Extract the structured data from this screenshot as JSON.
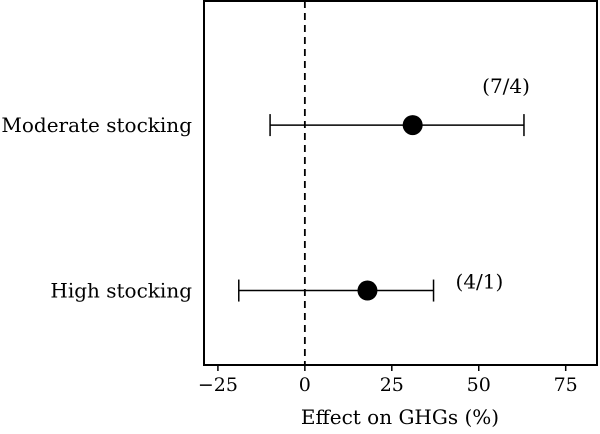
{
  "chart_data": {
    "type": "forest",
    "xlabel": "Effect on GHGs (%)",
    "xlim": [
      -29,
      84
    ],
    "x_ticks": [
      -25,
      0,
      25,
      50,
      75
    ],
    "x_tick_labels": [
      "−25",
      "0",
      "25",
      "50",
      "75"
    ],
    "reference_line": 0,
    "grid": false,
    "colors": {
      "marker": "#000000",
      "line": "#000000"
    },
    "rows": [
      {
        "label": "Moderate stocking",
        "estimate": 31,
        "ci_low": -10,
        "ci_high": 63,
        "annotation": "(7/4)"
      },
      {
        "label": "High stocking",
        "estimate": 18,
        "ci_low": -19,
        "ci_high": 37,
        "annotation": "(4/1)"
      }
    ]
  }
}
